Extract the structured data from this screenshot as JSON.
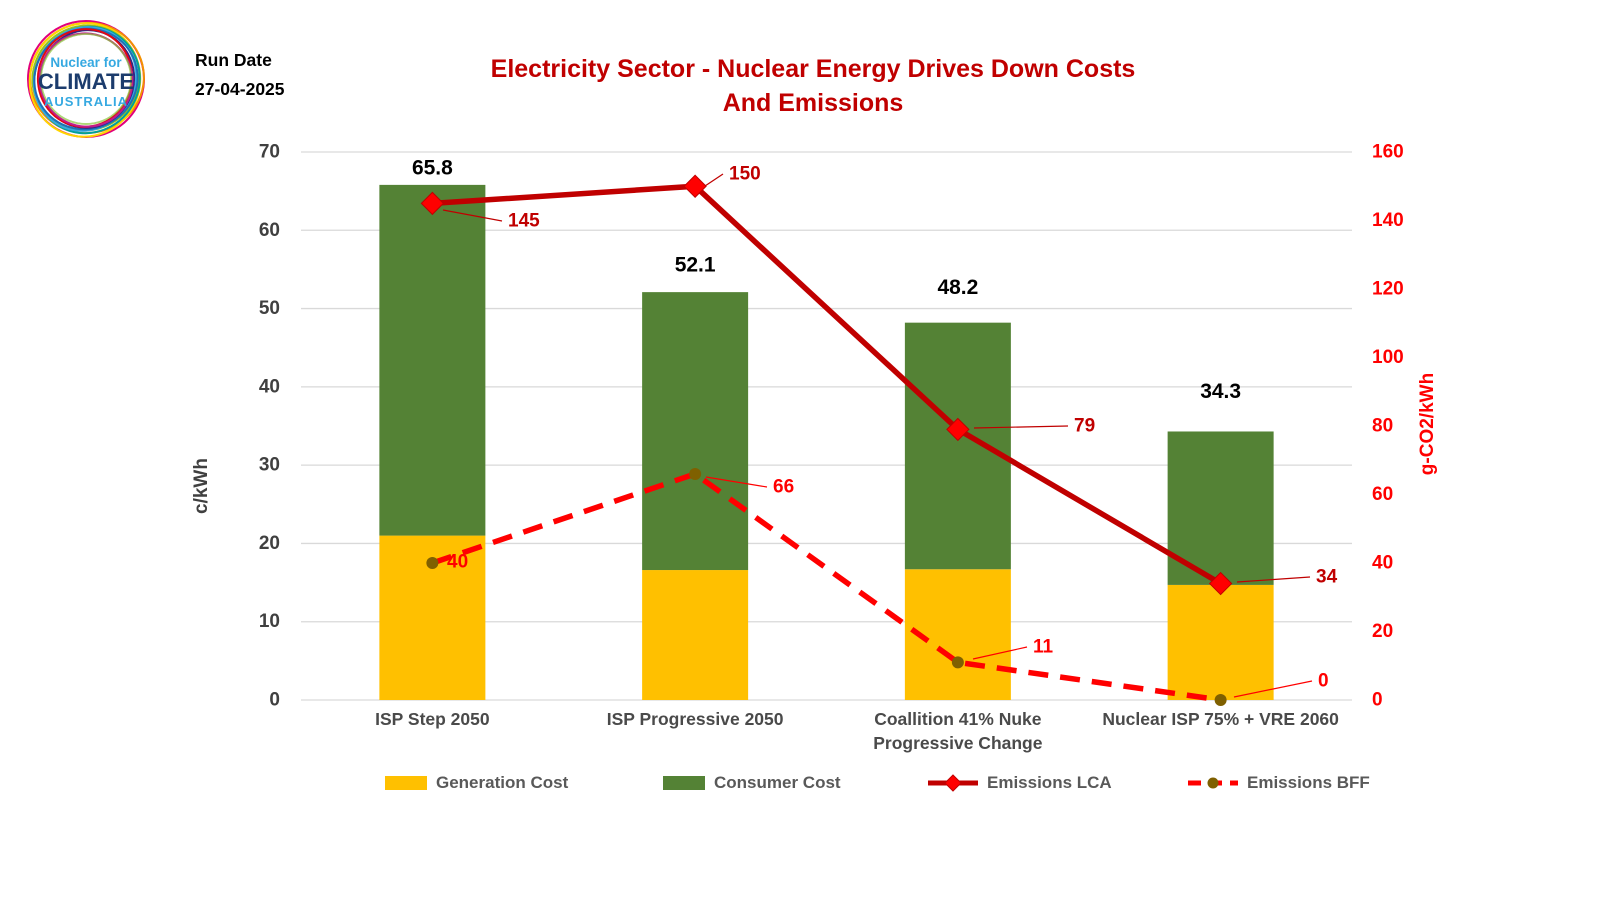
{
  "logo": {
    "top": "Nuclear for",
    "middle": "CLIMATE",
    "bottom": "AUSTRALIA"
  },
  "run_date": {
    "label": "Run Date",
    "value": "27-04-2025"
  },
  "title": {
    "line1": "Electricity Sector - Nuclear Energy Drives Down Costs",
    "line2": "And Emissions",
    "color": "#C00000"
  },
  "chart_data": {
    "type": "combo stacked-bar + line",
    "categories": [
      [
        "ISP Step 2050"
      ],
      [
        "ISP Progressive 2050"
      ],
      [
        "Coallition 41% Nuke",
        "Progressive Change"
      ],
      [
        "Nuclear ISP 75% + VRE 2060"
      ]
    ],
    "bar_series": [
      {
        "name": "Generation Cost",
        "color": "#FFC000",
        "axis": "left",
        "values": [
          21.0,
          16.6,
          16.7,
          14.7
        ]
      },
      {
        "name": "Consumer Cost",
        "color": "#548235",
        "axis": "left",
        "values": [
          44.8,
          35.5,
          31.5,
          19.6
        ]
      }
    ],
    "bar_totals": [
      65.8,
      52.1,
      48.2,
      34.3
    ],
    "line_series": [
      {
        "name": "Emissions LCA",
        "style": "solid",
        "color": "#C00000",
        "marker": "diamond",
        "marker_color": "#FF0000",
        "axis": "right",
        "values": [
          145,
          150,
          79,
          34
        ]
      },
      {
        "name": "Emissions BFF",
        "style": "dashed",
        "color": "#FF0000",
        "marker": "circle",
        "marker_color": "#7F6000",
        "axis": "right",
        "values": [
          40,
          66,
          11,
          0
        ]
      }
    ],
    "left_axis": {
      "title": "c/kWh",
      "min": 0,
      "max": 70,
      "step": 10,
      "tick_color": "#404040"
    },
    "right_axis": {
      "title": "g-CO2/kWh",
      "min": 0,
      "max": 160,
      "step": 20,
      "tick_color": "#FF0000"
    },
    "gridlines": "horizontal",
    "gridline_color": "#D9D9D9",
    "bar_total_color": "#000000",
    "category_color": "#4A4A4A",
    "legend_position": "bottom"
  }
}
